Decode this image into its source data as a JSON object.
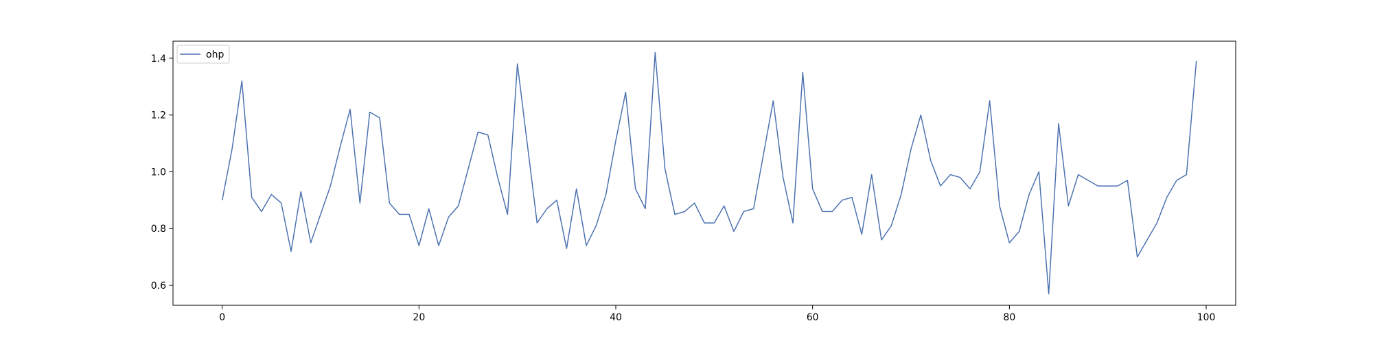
{
  "chart_data": {
    "type": "line",
    "title": "",
    "xlabel": "",
    "ylabel": "",
    "xlim": [
      -5,
      103
    ],
    "ylim": [
      0.53,
      1.46
    ],
    "x_ticks": [
      0,
      20,
      40,
      60,
      80,
      100
    ],
    "y_ticks": [
      0.6,
      0.8,
      1.0,
      1.2,
      1.4
    ],
    "x_tick_labels": [
      "0",
      "20",
      "40",
      "60",
      "80",
      "100"
    ],
    "y_tick_labels": [
      "0.6",
      "0.8",
      "1.0",
      "1.2",
      "1.4"
    ],
    "grid": false,
    "legend": {
      "position": "top-left"
    },
    "series": [
      {
        "name": "ohp",
        "color": "#4c72b0",
        "x": [
          0,
          1,
          2,
          3,
          4,
          5,
          6,
          7,
          8,
          9,
          10,
          11,
          12,
          13,
          14,
          15,
          16,
          17,
          18,
          19,
          20,
          21,
          22,
          23,
          24,
          25,
          26,
          27,
          28,
          29,
          30,
          31,
          32,
          33,
          34,
          35,
          36,
          37,
          38,
          39,
          40,
          41,
          42,
          43,
          44,
          45,
          46,
          47,
          48,
          49,
          50,
          51,
          52,
          53,
          54,
          55,
          56,
          57,
          58,
          59,
          60,
          61,
          62,
          63,
          64,
          65,
          66,
          67,
          68,
          69,
          70,
          71,
          72,
          73,
          74,
          75,
          76,
          77,
          78,
          79,
          80,
          81,
          82,
          83,
          84,
          85,
          86,
          87,
          88,
          89,
          90,
          91,
          92,
          93,
          94,
          95,
          96,
          97,
          98,
          99
        ],
        "values": [
          0.9,
          1.08,
          1.32,
          0.91,
          0.86,
          0.92,
          0.89,
          0.72,
          0.93,
          0.75,
          0.85,
          0.95,
          1.09,
          1.22,
          0.89,
          1.21,
          1.19,
          0.89,
          0.85,
          0.85,
          0.74,
          0.87,
          0.74,
          0.84,
          0.88,
          1.01,
          1.14,
          1.13,
          0.98,
          0.85,
          1.38,
          1.1,
          0.82,
          0.87,
          0.9,
          0.73,
          0.94,
          0.74,
          0.81,
          0.92,
          1.11,
          1.28,
          0.94,
          0.87,
          1.42,
          1.01,
          0.85,
          0.86,
          0.89,
          0.82,
          0.82,
          0.88,
          0.79,
          0.86,
          0.87,
          1.06,
          1.25,
          0.98,
          0.82,
          1.35,
          0.94,
          0.86,
          0.86,
          0.9,
          0.91,
          0.78,
          0.99,
          0.76,
          0.81,
          0.92,
          1.08,
          1.2,
          1.04,
          0.95,
          0.99,
          0.98,
          0.94,
          1.0,
          1.25,
          0.88,
          0.75,
          0.79,
          0.92,
          1.0,
          0.57,
          1.17,
          0.88,
          0.99,
          0.97,
          0.95,
          0.95,
          0.95,
          0.97,
          0.7,
          0.76,
          0.82,
          0.91,
          0.97,
          0.99,
          1.39
        ]
      }
    ]
  }
}
